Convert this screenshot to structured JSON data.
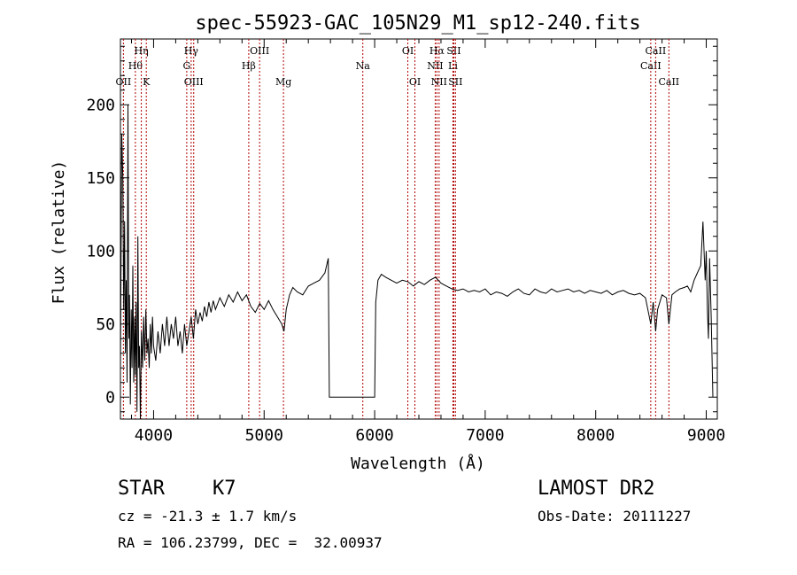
{
  "title": "spec-55923-GAC_105N29_M1_sp12-240.fits",
  "chart_data": {
    "type": "line",
    "xlabel": "Wavelength (Å)",
    "ylabel": "Flux (relative)",
    "xlim": [
      3700,
      9100
    ],
    "ylim": [
      -15,
      245
    ],
    "xticks": [
      4000,
      5000,
      6000,
      7000,
      8000,
      9000
    ],
    "yticks": [
      0,
      50,
      100,
      150,
      200
    ],
    "grid": false,
    "series": [
      {
        "points": [
          [
            3700,
            20
          ],
          [
            3712,
            180
          ],
          [
            3722,
            150
          ],
          [
            3730,
            60
          ],
          [
            3738,
            120
          ],
          [
            3745,
            30
          ],
          [
            3752,
            80
          ],
          [
            3760,
            10
          ],
          [
            3768,
            200
          ],
          [
            3775,
            40
          ],
          [
            3782,
            70
          ],
          [
            3790,
            -5
          ],
          [
            3798,
            60
          ],
          [
            3805,
            20
          ],
          [
            3812,
            90
          ],
          [
            3820,
            10
          ],
          [
            3828,
            55
          ],
          [
            3835,
            15
          ],
          [
            3842,
            65
          ],
          [
            3850,
            -10
          ],
          [
            3858,
            110
          ],
          [
            3865,
            20
          ],
          [
            3872,
            35
          ],
          [
            3880,
            -15
          ],
          [
            3890,
            45
          ],
          [
            3900,
            20
          ],
          [
            3910,
            55
          ],
          [
            3920,
            25
          ],
          [
            3930,
            60
          ],
          [
            3940,
            30
          ],
          [
            3950,
            40
          ],
          [
            3960,
            20
          ],
          [
            3970,
            50
          ],
          [
            3980,
            30
          ],
          [
            3990,
            55
          ],
          [
            4000,
            35
          ],
          [
            4020,
            25
          ],
          [
            4040,
            45
          ],
          [
            4060,
            30
          ],
          [
            4080,
            50
          ],
          [
            4100,
            35
          ],
          [
            4120,
            55
          ],
          [
            4140,
            35
          ],
          [
            4160,
            50
          ],
          [
            4180,
            40
          ],
          [
            4200,
            55
          ],
          [
            4220,
            35
          ],
          [
            4240,
            45
          ],
          [
            4260,
            30
          ],
          [
            4280,
            50
          ],
          [
            4300,
            35
          ],
          [
            4320,
            45
          ],
          [
            4340,
            55
          ],
          [
            4360,
            40
          ],
          [
            4380,
            60
          ],
          [
            4400,
            50
          ],
          [
            4420,
            58
          ],
          [
            4440,
            52
          ],
          [
            4460,
            62
          ],
          [
            4480,
            55
          ],
          [
            4500,
            65
          ],
          [
            4520,
            58
          ],
          [
            4540,
            66
          ],
          [
            4560,
            60
          ],
          [
            4600,
            68
          ],
          [
            4640,
            62
          ],
          [
            4680,
            70
          ],
          [
            4720,
            65
          ],
          [
            4760,
            72
          ],
          [
            4800,
            66
          ],
          [
            4840,
            70
          ],
          [
            4880,
            62
          ],
          [
            4920,
            58
          ],
          [
            4960,
            64
          ],
          [
            5000,
            60
          ],
          [
            5040,
            66
          ],
          [
            5080,
            60
          ],
          [
            5120,
            55
          ],
          [
            5160,
            50
          ],
          [
            5180,
            45
          ],
          [
            5200,
            60
          ],
          [
            5230,
            70
          ],
          [
            5260,
            75
          ],
          [
            5300,
            72
          ],
          [
            5350,
            70
          ],
          [
            5400,
            76
          ],
          [
            5450,
            78
          ],
          [
            5500,
            80
          ],
          [
            5550,
            85
          ],
          [
            5580,
            95
          ],
          [
            5590,
            0
          ],
          [
            6000,
            0
          ],
          [
            6010,
            65
          ],
          [
            6030,
            80
          ],
          [
            6060,
            84
          ],
          [
            6100,
            82
          ],
          [
            6150,
            80
          ],
          [
            6200,
            78
          ],
          [
            6250,
            80
          ],
          [
            6300,
            79
          ],
          [
            6350,
            76
          ],
          [
            6400,
            79
          ],
          [
            6450,
            77
          ],
          [
            6500,
            80
          ],
          [
            6550,
            82
          ],
          [
            6600,
            78
          ],
          [
            6650,
            76
          ],
          [
            6700,
            74
          ],
          [
            6750,
            73
          ],
          [
            6800,
            74
          ],
          [
            6850,
            72
          ],
          [
            6900,
            73
          ],
          [
            6950,
            72
          ],
          [
            7000,
            74
          ],
          [
            7050,
            70
          ],
          [
            7100,
            72
          ],
          [
            7150,
            71
          ],
          [
            7200,
            69
          ],
          [
            7250,
            72
          ],
          [
            7300,
            74
          ],
          [
            7350,
            71
          ],
          [
            7400,
            70
          ],
          [
            7450,
            74
          ],
          [
            7500,
            72
          ],
          [
            7550,
            71
          ],
          [
            7600,
            74
          ],
          [
            7650,
            72
          ],
          [
            7700,
            73
          ],
          [
            7750,
            74
          ],
          [
            7800,
            72
          ],
          [
            7850,
            73
          ],
          [
            7900,
            71
          ],
          [
            7950,
            73
          ],
          [
            8000,
            72
          ],
          [
            8050,
            71
          ],
          [
            8100,
            73
          ],
          [
            8150,
            70
          ],
          [
            8200,
            72
          ],
          [
            8250,
            73
          ],
          [
            8300,
            71
          ],
          [
            8350,
            70
          ],
          [
            8400,
            71
          ],
          [
            8450,
            68
          ],
          [
            8498,
            50
          ],
          [
            8520,
            65
          ],
          [
            8542,
            45
          ],
          [
            8560,
            60
          ],
          [
            8600,
            70
          ],
          [
            8640,
            68
          ],
          [
            8662,
            50
          ],
          [
            8690,
            70
          ],
          [
            8720,
            72
          ],
          [
            8760,
            74
          ],
          [
            8800,
            75
          ],
          [
            8830,
            76
          ],
          [
            8860,
            72
          ],
          [
            8890,
            80
          ],
          [
            8920,
            85
          ],
          [
            8950,
            90
          ],
          [
            8970,
            120
          ],
          [
            8990,
            80
          ],
          [
            9000,
            100
          ],
          [
            9010,
            60
          ],
          [
            9020,
            40
          ],
          [
            9030,
            95
          ],
          [
            9045,
            55
          ],
          [
            9060,
            0
          ]
        ]
      }
    ],
    "lines": [
      {
        "x": 3727,
        "label": "OII",
        "row": 3
      },
      {
        "x": 3835,
        "label": "Hθ",
        "row": 2
      },
      {
        "x": 3889,
        "label": "Hη",
        "row": 1
      },
      {
        "x": 3934,
        "label": "K",
        "row": 3
      },
      {
        "x": 4300,
        "label": "G",
        "row": 2
      },
      {
        "x": 4340,
        "label": "Hγ",
        "row": 1
      },
      {
        "x": 4363,
        "label": "OIII",
        "row": 3
      },
      {
        "x": 4861,
        "label": "Hβ",
        "row": 2
      },
      {
        "x": 4959,
        "label": "OIII",
        "row": 1
      },
      {
        "x": 5175,
        "label": "Mg",
        "row": 3
      },
      {
        "x": 5893,
        "label": "Na",
        "row": 2
      },
      {
        "x": 6300,
        "label": "OI",
        "row": 1
      },
      {
        "x": 6364,
        "label": "OI",
        "row": 3
      },
      {
        "x": 6548,
        "label": "NII",
        "row": 2
      },
      {
        "x": 6563,
        "label": "Hα",
        "row": 1
      },
      {
        "x": 6583,
        "label": "NII",
        "row": 3
      },
      {
        "x": 6708,
        "label": "Li",
        "row": 2
      },
      {
        "x": 6716,
        "label": "SII",
        "row": 1
      },
      {
        "x": 6731,
        "label": "SII",
        "row": 3
      },
      {
        "x": 8498,
        "label": "CaII",
        "row": 2
      },
      {
        "x": 8542,
        "label": "CaII",
        "row": 1
      },
      {
        "x": 8662,
        "label": "CaII",
        "row": 3
      }
    ]
  },
  "info": {
    "class": "STAR",
    "subclass": "K7",
    "cz": "cz = -21.3 ± 1.7 km/s",
    "coords": "RA = 106.23799, DEC =  32.00937",
    "survey": "LAMOST DR2",
    "obsdate": "Obs-Date: 20111227"
  }
}
